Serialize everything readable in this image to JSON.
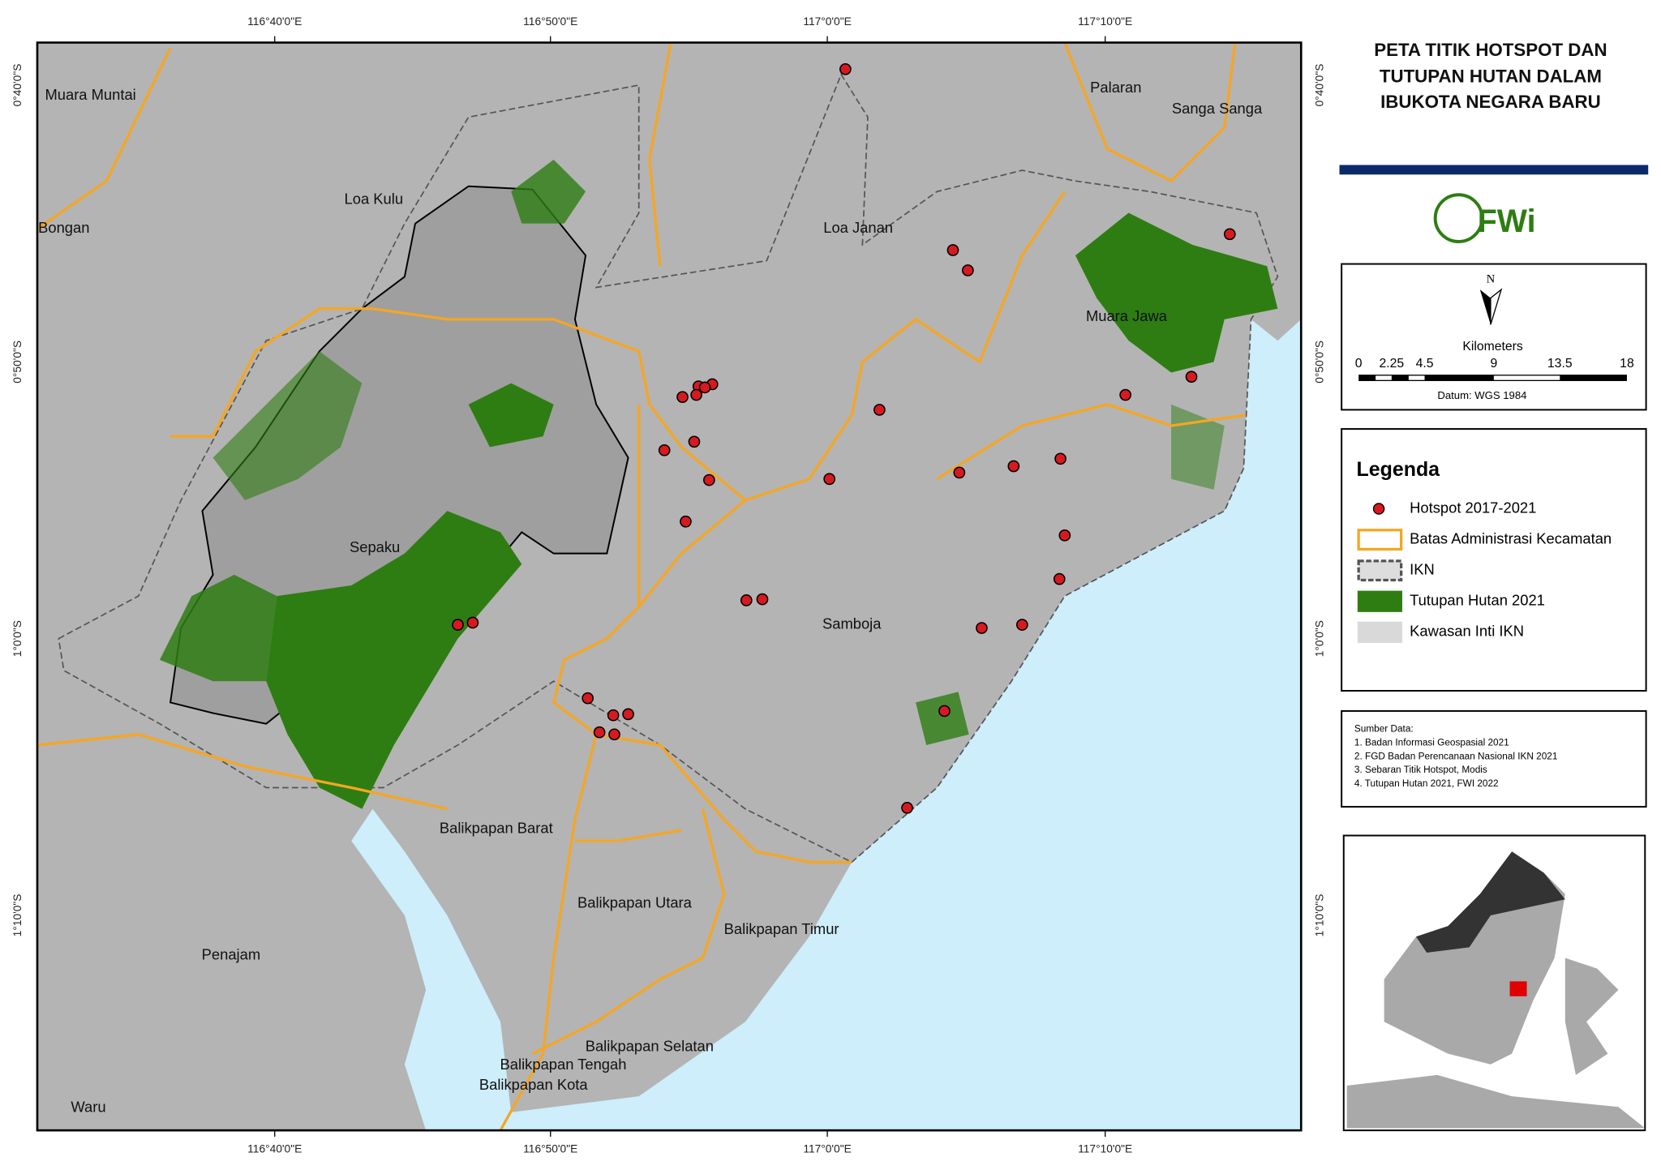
{
  "title": [
    "PETA TITIK HOTSPOT DAN",
    "TUTUPAN HUTAN DALAM",
    "IBUKOTA NEGARA BARU"
  ],
  "longitudes": [
    "116°40'0\"E",
    "116°50'0\"E",
    "117°0'0\"E",
    "117°10'0\"E"
  ],
  "latitudes": [
    "0°40'0\"S",
    "0°50'0\"S",
    "1°0'0\"S",
    "1°10'0\"S"
  ],
  "places": [
    "Muara Muntai",
    "Loa Kulu",
    "Bongan",
    "Palaran",
    "Sanga Sanga",
    "Loa Janan",
    "Muara Jawa",
    "Sepaku",
    "Samboja",
    "Balikpapan Barat",
    "Balikpapan Utara",
    "Balikpapan Timur",
    "Penajam",
    "Balikpapan Selatan",
    "Balikpapan Tengah",
    "Balikpapan Kota",
    "Waru"
  ],
  "north": "N",
  "scale": {
    "unit": "Kilometers",
    "labels": [
      "0",
      "2.25",
      "4.5",
      "9",
      "13.5",
      "18"
    ],
    "datum": "Datum:  WGS 1984"
  },
  "legend": {
    "title": "Legenda",
    "items": [
      "Hotspot 2017-2021",
      "Batas Administrasi Kecamatan",
      "IKN",
      "Tutupan Hutan 2021",
      "Kawasan Inti IKN"
    ]
  },
  "sources": {
    "heading": "Sumber Data:",
    "items": [
      "1. Badan Informasi Geospasial 2021",
      "2. FGD Badan Perencanaan Nasional IKN 2021",
      "3. Sebaran Titik Hotspot, Modis",
      "4. Tutupan Hutan 2021, FWI 2022"
    ]
  }
}
